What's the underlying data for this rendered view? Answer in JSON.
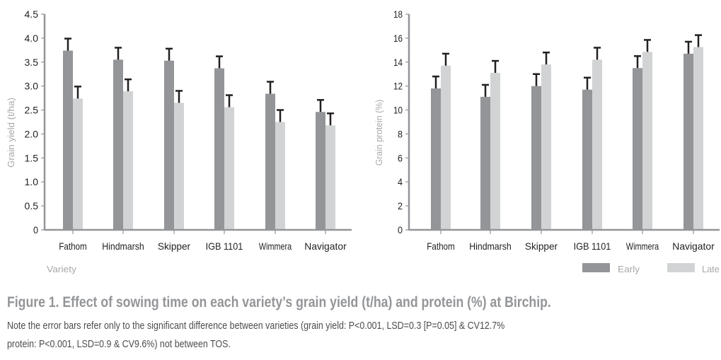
{
  "colors": {
    "early": "#939598",
    "late": "#d1d3d4",
    "axis": "#939598",
    "error": "#231f20"
  },
  "chart_data": [
    {
      "type": "bar",
      "title": "",
      "xlabel": "Variety",
      "ylabel": "Grain yield (t/ha)",
      "ylim": [
        0,
        4.5
      ],
      "yticks": [
        "0",
        "0.5",
        "1.0",
        "1.5",
        "2.0",
        "2.5",
        "3.0",
        "3.5",
        "4.0",
        "4.5"
      ],
      "categories": [
        "Fathom",
        "Hindmarsh",
        "Skipper",
        "IGB 1101",
        "Wimmera",
        "Navigator"
      ],
      "series": [
        {
          "name": "Early",
          "values": [
            3.74,
            3.55,
            3.53,
            3.37,
            2.84,
            2.46
          ],
          "error": 0.25
        },
        {
          "name": "Late",
          "values": [
            2.74,
            2.89,
            2.65,
            2.56,
            2.25,
            2.18
          ],
          "error": 0.25
        }
      ]
    },
    {
      "type": "bar",
      "title": "",
      "xlabel": "",
      "ylabel": "Grain protein (%)",
      "ylim": [
        0,
        18
      ],
      "yticks": [
        "0",
        "2",
        "4",
        "6",
        "8",
        "10",
        "12",
        "14",
        "16",
        "18"
      ],
      "categories": [
        "Fathom",
        "Hindmarsh",
        "Skipper",
        "IGB 1101",
        "Wimmera",
        "Navigator"
      ],
      "series": [
        {
          "name": "Early",
          "values": [
            11.8,
            11.1,
            12.0,
            11.7,
            13.5,
            14.7
          ],
          "error": 1.0
        },
        {
          "name": "Late",
          "values": [
            13.7,
            13.1,
            13.8,
            14.2,
            14.85,
            15.25
          ],
          "error": 1.0
        }
      ],
      "legend": "bottom-right"
    }
  ],
  "caption": {
    "title": "Figure 1. Effect of sowing time on each variety’s grain yield (t/ha) and protein (%) at Birchip.",
    "note_line1": "Note the error bars refer only to the significant difference between varieties (grain yield: P<0.001, LSD=0.3 [P=0.05] & CV12.7%",
    "note_line2": "protein: P<0.001, LSD=0.9 & CV9.6%) not between TOS."
  }
}
